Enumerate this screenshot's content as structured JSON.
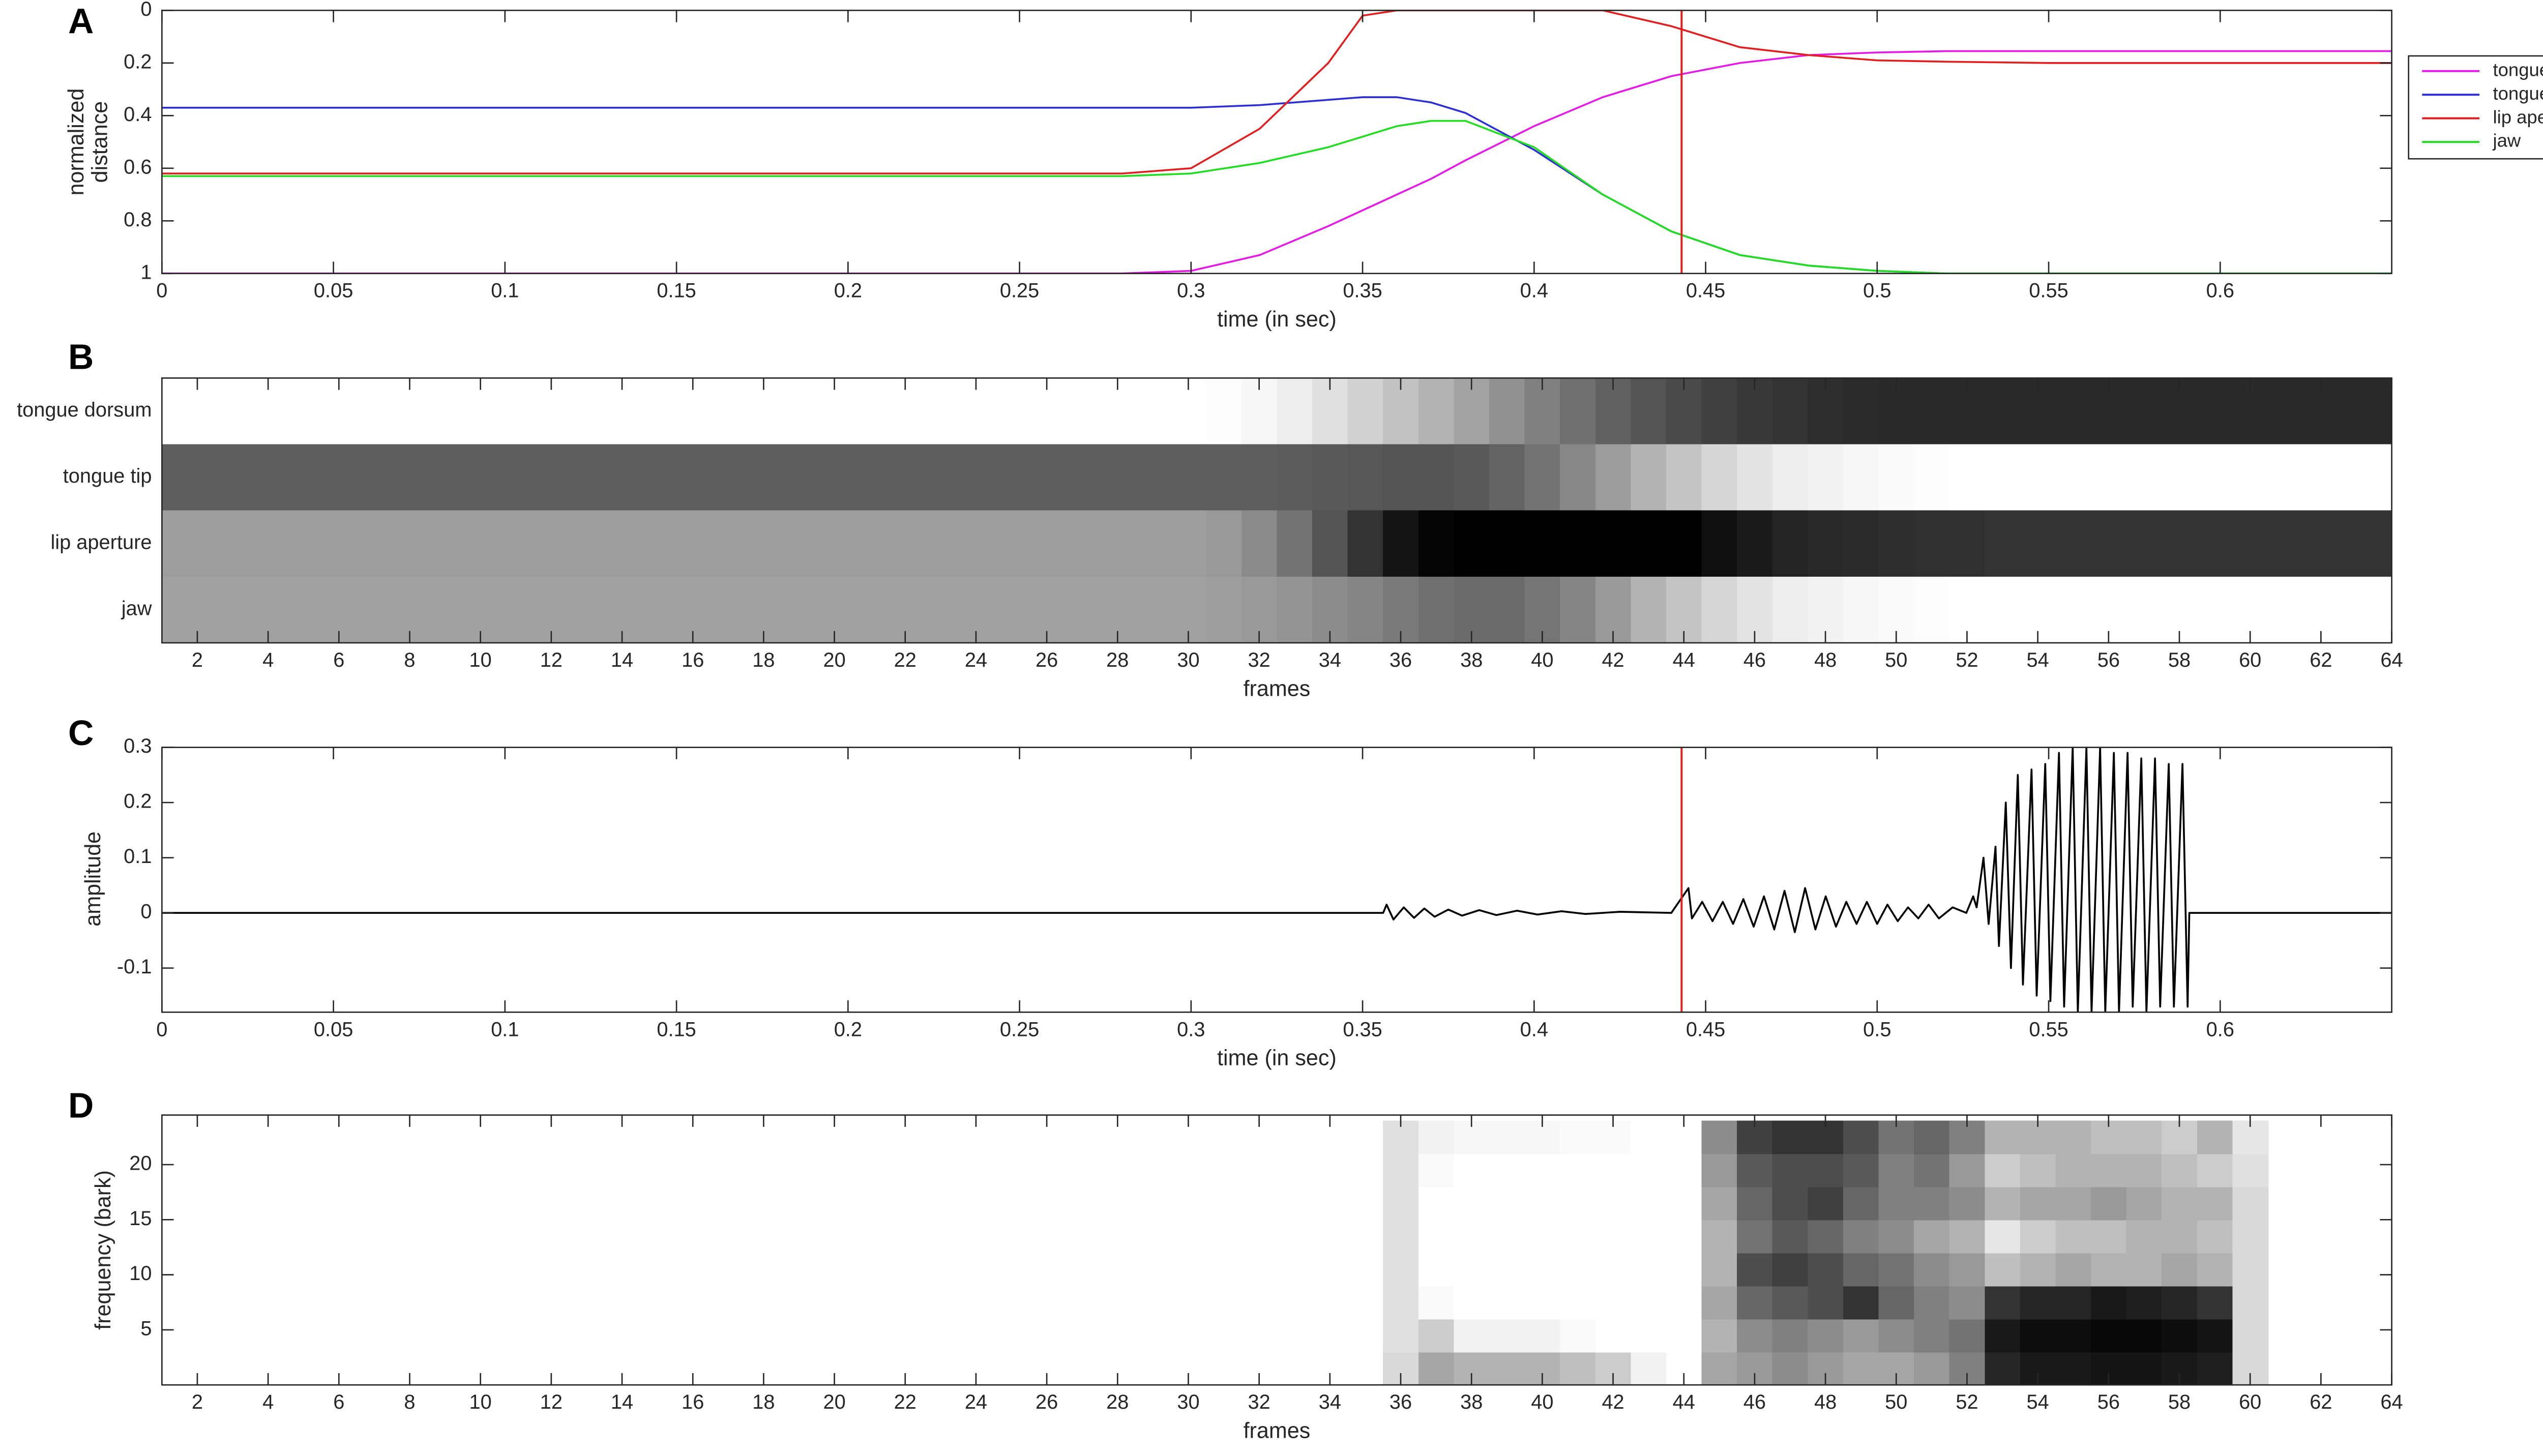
{
  "chart_data": [
    {
      "type": "line",
      "panel_label": "A",
      "xlabel": "time (in sec)",
      "ylabel": [
        "normalized",
        "distance"
      ],
      "x": [
        0,
        0.05,
        0.1,
        0.15,
        0.2,
        0.25,
        0.28,
        0.3,
        0.32,
        0.34,
        0.35,
        0.36,
        0.37,
        0.38,
        0.4,
        0.42,
        0.44,
        0.46,
        0.48,
        0.5,
        0.52,
        0.55,
        0.6,
        0.65
      ],
      "series": [
        {
          "name": "tongue dorsum",
          "color": "#e619e6",
          "values": [
            1,
            1,
            1,
            1,
            1,
            1,
            1,
            0.99,
            0.93,
            0.82,
            0.76,
            0.7,
            0.64,
            0.57,
            0.44,
            0.33,
            0.25,
            0.2,
            0.17,
            0.16,
            0.155,
            0.155,
            0.155,
            0.155
          ]
        },
        {
          "name": "tongue tip",
          "color": "#2f2fd6",
          "values": [
            0.37,
            0.37,
            0.37,
            0.37,
            0.37,
            0.37,
            0.37,
            0.37,
            0.36,
            0.34,
            0.33,
            0.33,
            0.35,
            0.39,
            0.53,
            0.7,
            0.84,
            0.93,
            0.97,
            0.99,
            1,
            1,
            1,
            1
          ]
        },
        {
          "name": "lip aperture",
          "color": "#e02020",
          "values": [
            0.62,
            0.62,
            0.62,
            0.62,
            0.62,
            0.62,
            0.62,
            0.6,
            0.45,
            0.2,
            0.02,
            0,
            0,
            0,
            0,
            0,
            0.06,
            0.14,
            0.17,
            0.19,
            0.195,
            0.2,
            0.2,
            0.2
          ]
        },
        {
          "name": "jaw",
          "color": "#22dd22",
          "values": [
            0.63,
            0.63,
            0.63,
            0.63,
            0.63,
            0.63,
            0.63,
            0.62,
            0.58,
            0.52,
            0.48,
            0.44,
            0.42,
            0.42,
            0.52,
            0.7,
            0.84,
            0.93,
            0.97,
            0.99,
            1,
            1,
            1,
            1
          ]
        }
      ],
      "xlim": [
        0,
        0.65
      ],
      "xticks": [
        0,
        0.05,
        0.1,
        0.15,
        0.2,
        0.25,
        0.3,
        0.35,
        0.4,
        0.45,
        0.5,
        0.55,
        0.6
      ],
      "ylim": [
        1,
        0
      ],
      "yticks": [
        0,
        0.2,
        0.4,
        0.6,
        0.8,
        1
      ],
      "vline": 0.443,
      "vline_color": "#e02020",
      "legend": "outside-right"
    },
    {
      "type": "heatmap",
      "panel_label": "B",
      "xlabel": "frames",
      "colormap": "gray",
      "categories": [
        "tongue dorsum",
        "tongue tip",
        "lip aperture",
        "jaw"
      ],
      "x": [
        1,
        2,
        3,
        4,
        5,
        6,
        7,
        8,
        9,
        10,
        11,
        12,
        13,
        14,
        15,
        16,
        17,
        18,
        19,
        20,
        21,
        22,
        23,
        24,
        25,
        26,
        27,
        28,
        29,
        30,
        31,
        32,
        33,
        34,
        35,
        36,
        37,
        38,
        39,
        40,
        41,
        42,
        43,
        44,
        45,
        46,
        47,
        48,
        49,
        50,
        51,
        52,
        53,
        54,
        55,
        56,
        57,
        58,
        59,
        60,
        61,
        62,
        63,
        64
      ],
      "z": [
        [
          1,
          1,
          1,
          1,
          1,
          1,
          1,
          1,
          1,
          1,
          1,
          1,
          1,
          1,
          1,
          1,
          1,
          1,
          1,
          1,
          1,
          1,
          1,
          1,
          1,
          1,
          1,
          1,
          1,
          1,
          0.99,
          0.97,
          0.93,
          0.88,
          0.82,
          0.76,
          0.7,
          0.64,
          0.57,
          0.5,
          0.44,
          0.38,
          0.33,
          0.29,
          0.25,
          0.22,
          0.2,
          0.18,
          0.17,
          0.16,
          0.16,
          0.16,
          0.16,
          0.16,
          0.16,
          0.16,
          0.16,
          0.16,
          0.16,
          0.16,
          0.16,
          0.16,
          0.16,
          0.16
        ],
        [
          0.37,
          0.37,
          0.37,
          0.37,
          0.37,
          0.37,
          0.37,
          0.37,
          0.37,
          0.37,
          0.37,
          0.37,
          0.37,
          0.37,
          0.37,
          0.37,
          0.37,
          0.37,
          0.37,
          0.37,
          0.37,
          0.37,
          0.37,
          0.37,
          0.37,
          0.37,
          0.37,
          0.37,
          0.37,
          0.37,
          0.37,
          0.365,
          0.36,
          0.35,
          0.34,
          0.33,
          0.33,
          0.35,
          0.39,
          0.45,
          0.53,
          0.61,
          0.7,
          0.77,
          0.84,
          0.89,
          0.93,
          0.95,
          0.97,
          0.98,
          0.99,
          1,
          1,
          1,
          1,
          1,
          1,
          1,
          1,
          1,
          1,
          1,
          1,
          1
        ],
        [
          0.62,
          0.62,
          0.62,
          0.62,
          0.62,
          0.62,
          0.62,
          0.62,
          0.62,
          0.62,
          0.62,
          0.62,
          0.62,
          0.62,
          0.62,
          0.62,
          0.62,
          0.62,
          0.62,
          0.62,
          0.62,
          0.62,
          0.62,
          0.62,
          0.62,
          0.62,
          0.62,
          0.62,
          0.62,
          0.62,
          0.6,
          0.54,
          0.45,
          0.33,
          0.2,
          0.08,
          0.02,
          0,
          0,
          0,
          0,
          0,
          0,
          0,
          0.06,
          0.1,
          0.14,
          0.16,
          0.17,
          0.18,
          0.19,
          0.19,
          0.2,
          0.2,
          0.2,
          0.2,
          0.2,
          0.2,
          0.2,
          0.2,
          0.2,
          0.2,
          0.2,
          0.2
        ],
        [
          0.63,
          0.63,
          0.63,
          0.63,
          0.63,
          0.63,
          0.63,
          0.63,
          0.63,
          0.63,
          0.63,
          0.63,
          0.63,
          0.63,
          0.63,
          0.63,
          0.63,
          0.63,
          0.63,
          0.63,
          0.63,
          0.63,
          0.63,
          0.63,
          0.63,
          0.63,
          0.63,
          0.63,
          0.63,
          0.63,
          0.62,
          0.6,
          0.58,
          0.55,
          0.52,
          0.48,
          0.44,
          0.42,
          0.42,
          0.46,
          0.52,
          0.6,
          0.7,
          0.77,
          0.84,
          0.89,
          0.93,
          0.95,
          0.97,
          0.98,
          0.99,
          1,
          1,
          1,
          1,
          1,
          1,
          1,
          1,
          1,
          1,
          1,
          1,
          1
        ]
      ],
      "xlim": [
        1,
        64
      ],
      "xticks": [
        2,
        4,
        6,
        8,
        10,
        12,
        14,
        16,
        18,
        20,
        22,
        24,
        26,
        28,
        30,
        32,
        34,
        36,
        38,
        40,
        42,
        44,
        46,
        48,
        50,
        52,
        54,
        56,
        58,
        60,
        62,
        64
      ]
    },
    {
      "type": "line",
      "panel_label": "C",
      "xlabel": "time (in sec)",
      "ylabel": "amplitude",
      "x": [
        0,
        0.356,
        0.357,
        0.359,
        0.362,
        0.365,
        0.368,
        0.371,
        0.375,
        0.379,
        0.384,
        0.389,
        0.395,
        0.401,
        0.408,
        0.415,
        0.425,
        0.44,
        0.445,
        0.446,
        0.449,
        0.452,
        0.455,
        0.458,
        0.461,
        0.464,
        0.467,
        0.47,
        0.473,
        0.476,
        0.479,
        0.482,
        0.485,
        0.488,
        0.491,
        0.494,
        0.497,
        0.5,
        0.503,
        0.506,
        0.509,
        0.512,
        0.515,
        0.518,
        0.522,
        0.526,
        0.528,
        0.529,
        0.531,
        0.5325,
        0.5345,
        0.5355,
        0.5375,
        0.539,
        0.541,
        0.5425,
        0.545,
        0.5465,
        0.549,
        0.5505,
        0.553,
        0.5545,
        0.557,
        0.5585,
        0.561,
        0.5625,
        0.565,
        0.5665,
        0.569,
        0.5705,
        0.573,
        0.5745,
        0.577,
        0.5785,
        0.581,
        0.5825,
        0.585,
        0.5865,
        0.589,
        0.5905,
        0.591,
        0.65
      ],
      "series": [
        {
          "color": "#000000",
          "values": [
            0,
            0,
            0.015,
            -0.012,
            0.01,
            -0.009,
            0.008,
            -0.007,
            0.006,
            -0.005,
            0.005,
            -0.004,
            0.004,
            -0.003,
            0.003,
            -0.002,
            0.002,
            0,
            0.045,
            -0.01,
            0.02,
            -0.015,
            0.02,
            -0.02,
            0.025,
            -0.025,
            0.03,
            -0.03,
            0.04,
            -0.035,
            0.045,
            -0.03,
            0.03,
            -0.025,
            0.02,
            -0.02,
            0.02,
            -0.02,
            0.015,
            -0.015,
            0.01,
            -0.01,
            0.015,
            -0.01,
            0.01,
            0,
            0.03,
            0.01,
            0.1,
            -0.02,
            0.12,
            -0.06,
            0.2,
            -0.1,
            0.25,
            -0.13,
            0.26,
            -0.15,
            0.27,
            -0.16,
            0.29,
            -0.17,
            0.3,
            -0.18,
            0.3,
            -0.18,
            0.3,
            -0.18,
            0.29,
            -0.18,
            0.29,
            -0.17,
            0.28,
            -0.18,
            0.28,
            -0.17,
            0.27,
            -0.17,
            0.27,
            -0.17,
            0,
            0
          ]
        }
      ],
      "xlim": [
        0,
        0.65
      ],
      "xticks": [
        0,
        0.05,
        0.1,
        0.15,
        0.2,
        0.25,
        0.3,
        0.35,
        0.4,
        0.45,
        0.5,
        0.55,
        0.6
      ],
      "ylim": [
        -0.18,
        0.3
      ],
      "yticks": [
        -0.1,
        0,
        0.1,
        0.2,
        0.3
      ],
      "vline": 0.443,
      "vline_color": "#e02020"
    },
    {
      "type": "heatmap",
      "panel_label": "D",
      "xlabel": "frames",
      "ylabel": "frequency (bark)",
      "colormap": "gray-inverted",
      "x": [
        36,
        37,
        38,
        39,
        40,
        41,
        42,
        43,
        44,
        45,
        46,
        47,
        48,
        49,
        50,
        51,
        52,
        53,
        54,
        55,
        56,
        57,
        58,
        59,
        60
      ],
      "y_edges": [
        0,
        3,
        6,
        9,
        12,
        15,
        18,
        21,
        24
      ],
      "z": [
        [
          0.15,
          0.35,
          0.3,
          0.3,
          0.3,
          0.25,
          0.2,
          0.05,
          0,
          0.35,
          0.4,
          0.45,
          0.4,
          0.35,
          0.35,
          0.4,
          0.5,
          0.85,
          0.9,
          0.9,
          0.92,
          0.92,
          0.9,
          0.88,
          0.15
        ],
        [
          0.12,
          0.2,
          0.05,
          0.05,
          0.05,
          0.02,
          0,
          0,
          0,
          0.3,
          0.45,
          0.5,
          0.45,
          0.4,
          0.45,
          0.5,
          0.55,
          0.9,
          0.95,
          0.95,
          0.97,
          0.97,
          0.95,
          0.92,
          0.15
        ],
        [
          0.12,
          0.02,
          0,
          0,
          0,
          0,
          0,
          0,
          0,
          0.35,
          0.6,
          0.65,
          0.7,
          0.8,
          0.6,
          0.5,
          0.45,
          0.8,
          0.85,
          0.85,
          0.9,
          0.88,
          0.85,
          0.8,
          0.15
        ],
        [
          0.12,
          0,
          0,
          0,
          0,
          0,
          0,
          0,
          0,
          0.3,
          0.7,
          0.75,
          0.7,
          0.6,
          0.55,
          0.45,
          0.4,
          0.25,
          0.3,
          0.35,
          0.3,
          0.3,
          0.35,
          0.3,
          0.15
        ],
        [
          0.12,
          0,
          0,
          0,
          0,
          0,
          0,
          0,
          0,
          0.3,
          0.55,
          0.65,
          0.6,
          0.5,
          0.45,
          0.35,
          0.3,
          0.1,
          0.2,
          0.25,
          0.25,
          0.3,
          0.3,
          0.25,
          0.15
        ],
        [
          0.12,
          0,
          0,
          0,
          0,
          0,
          0,
          0,
          0,
          0.35,
          0.6,
          0.7,
          0.75,
          0.6,
          0.5,
          0.5,
          0.45,
          0.3,
          0.35,
          0.35,
          0.4,
          0.35,
          0.3,
          0.3,
          0.15
        ],
        [
          0.12,
          0.02,
          0,
          0,
          0,
          0,
          0,
          0,
          0,
          0.4,
          0.65,
          0.7,
          0.7,
          0.65,
          0.5,
          0.55,
          0.4,
          0.2,
          0.25,
          0.3,
          0.3,
          0.3,
          0.25,
          0.2,
          0.12
        ],
        [
          0.12,
          0.05,
          0.03,
          0.03,
          0.03,
          0.02,
          0.02,
          0,
          0,
          0.45,
          0.75,
          0.8,
          0.8,
          0.7,
          0.55,
          0.6,
          0.5,
          0.3,
          0.3,
          0.3,
          0.25,
          0.25,
          0.2,
          0.3,
          0.1
        ]
      ],
      "xlim": [
        1,
        64
      ],
      "xticks": [
        2,
        4,
        6,
        8,
        10,
        12,
        14,
        16,
        18,
        20,
        22,
        24,
        26,
        28,
        30,
        32,
        34,
        36,
        38,
        40,
        42,
        44,
        46,
        48,
        50,
        52,
        54,
        56,
        58,
        60,
        62,
        64
      ],
      "ylim": [
        0,
        24.5
      ],
      "yticks": [
        5,
        10,
        15,
        20
      ]
    }
  ]
}
